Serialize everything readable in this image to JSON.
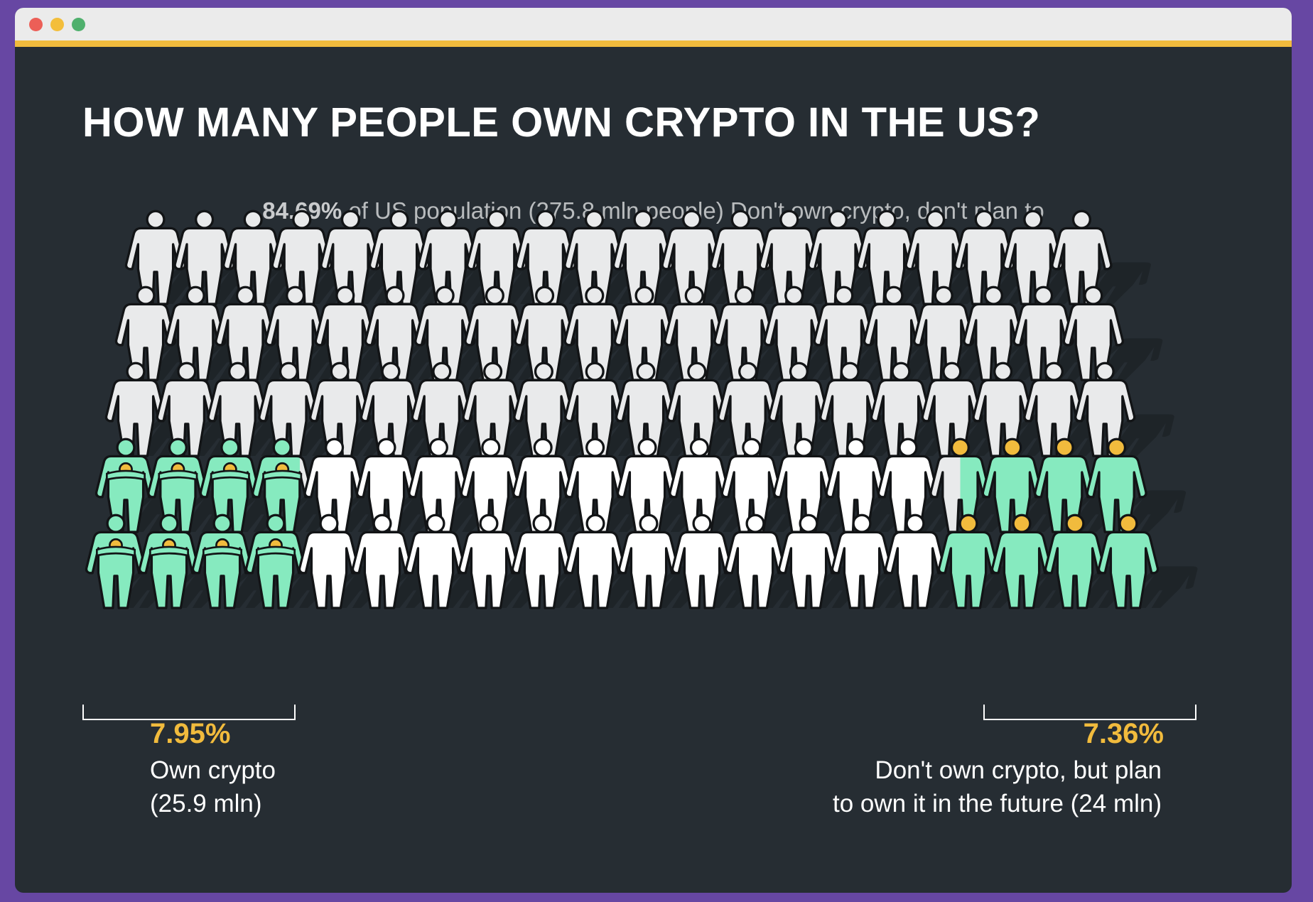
{
  "page": {
    "title": "HOW MANY PEOPLE OWN CRYPTO IN THE US?",
    "subtitle_pct": "84.69%",
    "subtitle_text": "of US population (275.8 mln people) Don't own crypto, don't plan to"
  },
  "colors": {
    "frame": "#6747a3",
    "background": "#262d33",
    "accent_bar": "#f1bb3d",
    "not_own_not_plan": "#e9eaeb",
    "own": "#86eabf",
    "plan": "#86eabf",
    "coin": "#f1bb3d",
    "outline": "#121416"
  },
  "chart_data": {
    "type": "pictogram",
    "title": "HOW MANY PEOPLE OWN CRYPTO IN THE US?",
    "segments": [
      {
        "label": "Own crypto",
        "percent": 7.95,
        "people_mln": 25.9,
        "display_pct": "7.95%",
        "line1": "Own crypto",
        "line2": "(25.9 mln)"
      },
      {
        "label": "Don't own crypto, don't plan to",
        "percent": 84.69,
        "people_mln": 275.8,
        "display_pct": "84.69%"
      },
      {
        "label": "Don't own crypto, but plan to own it in the future",
        "percent": 7.36,
        "people_mln": 24,
        "display_pct": "7.36%",
        "line1": "Don't own crypto, but plan",
        "line2": "to own it in the future (24 mln)"
      }
    ],
    "icon_grid": {
      "rows": 5,
      "row_counts": [
        20,
        20,
        20,
        20,
        20
      ],
      "own_icons": [
        0,
        0,
        0,
        3.8,
        4
      ],
      "plan_icons": [
        0,
        0,
        0,
        3.5,
        4
      ]
    }
  }
}
